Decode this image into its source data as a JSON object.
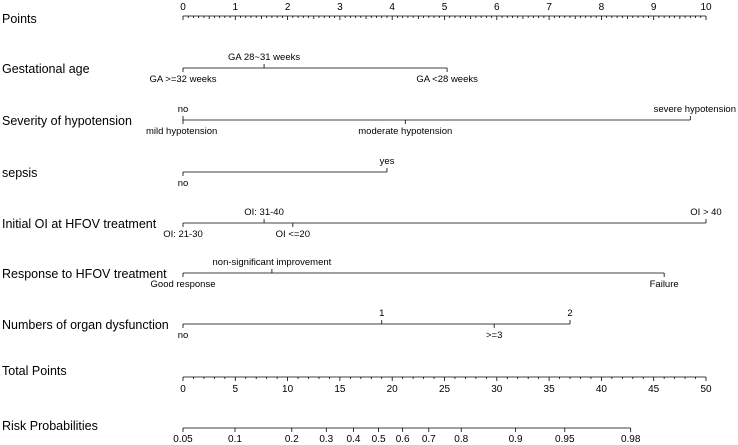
{
  "chart_data": {
    "type": "nomogram",
    "title": "",
    "points_axis": {
      "label": "Points",
      "min": 0,
      "max": 10,
      "ticks": [
        "0",
        "1",
        "2",
        "3",
        "4",
        "5",
        "6",
        "7",
        "8",
        "9",
        "10"
      ]
    },
    "variables": [
      {
        "label": "Gestational age",
        "levels": [
          {
            "name": "GA >=32 weeks",
            "points": 0.0,
            "side": "below"
          },
          {
            "name": "GA 28~31 weeks",
            "points": 1.55,
            "side": "above"
          },
          {
            "name": "GA <28 weeks",
            "points": 5.05,
            "side": "below"
          }
        ]
      },
      {
        "label": "Severity of hypotension",
        "levels": [
          {
            "name": "no",
            "points": 0.0,
            "side": "above"
          },
          {
            "name": "mild hypotension",
            "points": 0.0,
            "side": "below"
          },
          {
            "name": "moderate hypotension",
            "points": 4.25,
            "side": "below"
          },
          {
            "name": "severe hypotension",
            "points": 9.7,
            "side": "above"
          }
        ]
      },
      {
        "label": "sepsis",
        "levels": [
          {
            "name": "no",
            "points": 0.0,
            "side": "below"
          },
          {
            "name": "yes",
            "points": 3.9,
            "side": "above"
          }
        ]
      },
      {
        "label": "Initial OI at HFOV treatment",
        "levels": [
          {
            "name": "OI: 21-30",
            "points": 0.0,
            "side": "below"
          },
          {
            "name": "OI: 31-40",
            "points": 1.55,
            "side": "above"
          },
          {
            "name": "OI <=20",
            "points": 2.1,
            "side": "below"
          },
          {
            "name": "OI > 40",
            "points": 10.0,
            "side": "above"
          }
        ]
      },
      {
        "label": "Response to HFOV treatment",
        "levels": [
          {
            "name": "Good response",
            "points": 0.0,
            "side": "below"
          },
          {
            "name": "non-significant improvement",
            "points": 1.7,
            "side": "above"
          },
          {
            "name": "Failure",
            "points": 9.2,
            "side": "below"
          }
        ]
      },
      {
        "label": "Numbers of organ dysfunction",
        "levels": [
          {
            "name": "no",
            "points": 0.0,
            "side": "below"
          },
          {
            "name": "1",
            "points": 3.8,
            "side": "above"
          },
          {
            "name": ">=3",
            "points": 5.95,
            "side": "below"
          },
          {
            "name": "2",
            "points": 7.4,
            "side": "above"
          }
        ]
      }
    ],
    "total_points_axis": {
      "label": "Total Points",
      "min": 0,
      "max": 50,
      "ticks": [
        "0",
        "5",
        "10",
        "15",
        "20",
        "25",
        "30",
        "35",
        "40",
        "45",
        "50"
      ]
    },
    "risk_axis": {
      "label": "Risk Probabilities",
      "ticks": [
        {
          "label": "0.05",
          "total_points": 0.0
        },
        {
          "label": "0.1",
          "total_points": 4.97
        },
        {
          "label": "0.2",
          "total_points": 10.4
        },
        {
          "label": "0.3",
          "total_points": 13.7
        },
        {
          "label": "0.4",
          "total_points": 16.3
        },
        {
          "label": "0.5",
          "total_points": 18.7
        },
        {
          "label": "0.6",
          "total_points": 21.0
        },
        {
          "label": "0.7",
          "total_points": 23.5
        },
        {
          "label": "0.8",
          "total_points": 26.6
        },
        {
          "label": "0.9",
          "total_points": 31.8
        },
        {
          "label": "0.95",
          "total_points": 36.5
        },
        {
          "label": "0.98",
          "total_points": 42.8
        }
      ]
    }
  }
}
